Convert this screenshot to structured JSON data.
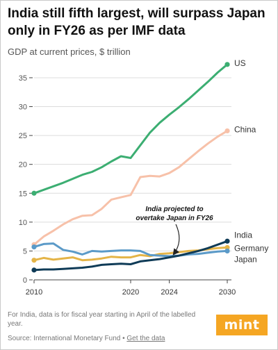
{
  "title": "India still fifth largest, will surpass Japan only in FY26 as per IMF data",
  "subtitle": "GDP at current prices, $ trillion",
  "annotation": {
    "line1": "India projected to",
    "line2": "overtake Japan in FY26"
  },
  "footnote": "For India, data is for fiscal year starting in April of the labelled year.",
  "source": {
    "prefix": "Source: International Monetary Fund • ",
    "link": "Get the data"
  },
  "logo": "mint",
  "colors": {
    "US": "#3cae72",
    "China": "#f7c1a9",
    "India": "#0f3b57",
    "Germany": "#e4b447",
    "Japan": "#5b9ac8",
    "grid": "#dcdcdc"
  },
  "chart_data": {
    "type": "line",
    "x": [
      2010,
      2011,
      2012,
      2013,
      2014,
      2015,
      2016,
      2017,
      2018,
      2019,
      2020,
      2021,
      2022,
      2023,
      2024,
      2025,
      2026,
      2027,
      2028,
      2029,
      2030
    ],
    "xticks": [
      "2010",
      "2020",
      "2024",
      "2030"
    ],
    "yticks": [
      "0",
      "5",
      "10",
      "15",
      "20",
      "25",
      "30",
      "35"
    ],
    "ylim": [
      0,
      38
    ],
    "grid": true,
    "series": [
      {
        "name": "US",
        "values": [
          15.0,
          15.6,
          16.2,
          16.8,
          17.5,
          18.2,
          18.7,
          19.5,
          20.5,
          21.4,
          21.1,
          23.3,
          25.5,
          27.2,
          28.6,
          29.9,
          31.3,
          32.8,
          34.3,
          35.9,
          37.3
        ]
      },
      {
        "name": "China",
        "values": [
          6.1,
          7.5,
          8.5,
          9.6,
          10.5,
          11.1,
          11.2,
          12.3,
          13.9,
          14.3,
          14.7,
          17.8,
          18.0,
          17.9,
          18.5,
          19.5,
          20.9,
          22.3,
          23.6,
          24.8,
          25.8
        ]
      },
      {
        "name": "India",
        "values": [
          1.7,
          1.8,
          1.8,
          1.9,
          2.0,
          2.1,
          2.3,
          2.6,
          2.7,
          2.8,
          2.7,
          3.2,
          3.4,
          3.6,
          3.9,
          4.2,
          4.6,
          5.0,
          5.5,
          6.1,
          6.7
        ]
      },
      {
        "name": "Germany",
        "values": [
          3.4,
          3.8,
          3.5,
          3.7,
          3.9,
          3.4,
          3.5,
          3.7,
          4.0,
          3.9,
          3.9,
          4.3,
          4.1,
          4.5,
          4.6,
          4.8,
          5.0,
          5.1,
          5.3,
          5.5,
          5.6
        ]
      },
      {
        "name": "Japan",
        "values": [
          5.7,
          6.2,
          6.3,
          5.2,
          4.9,
          4.4,
          5.0,
          4.9,
          5.0,
          5.1,
          5.1,
          5.0,
          4.3,
          4.2,
          4.1,
          4.2,
          4.4,
          4.5,
          4.7,
          4.9,
          5.0
        ]
      }
    ]
  }
}
